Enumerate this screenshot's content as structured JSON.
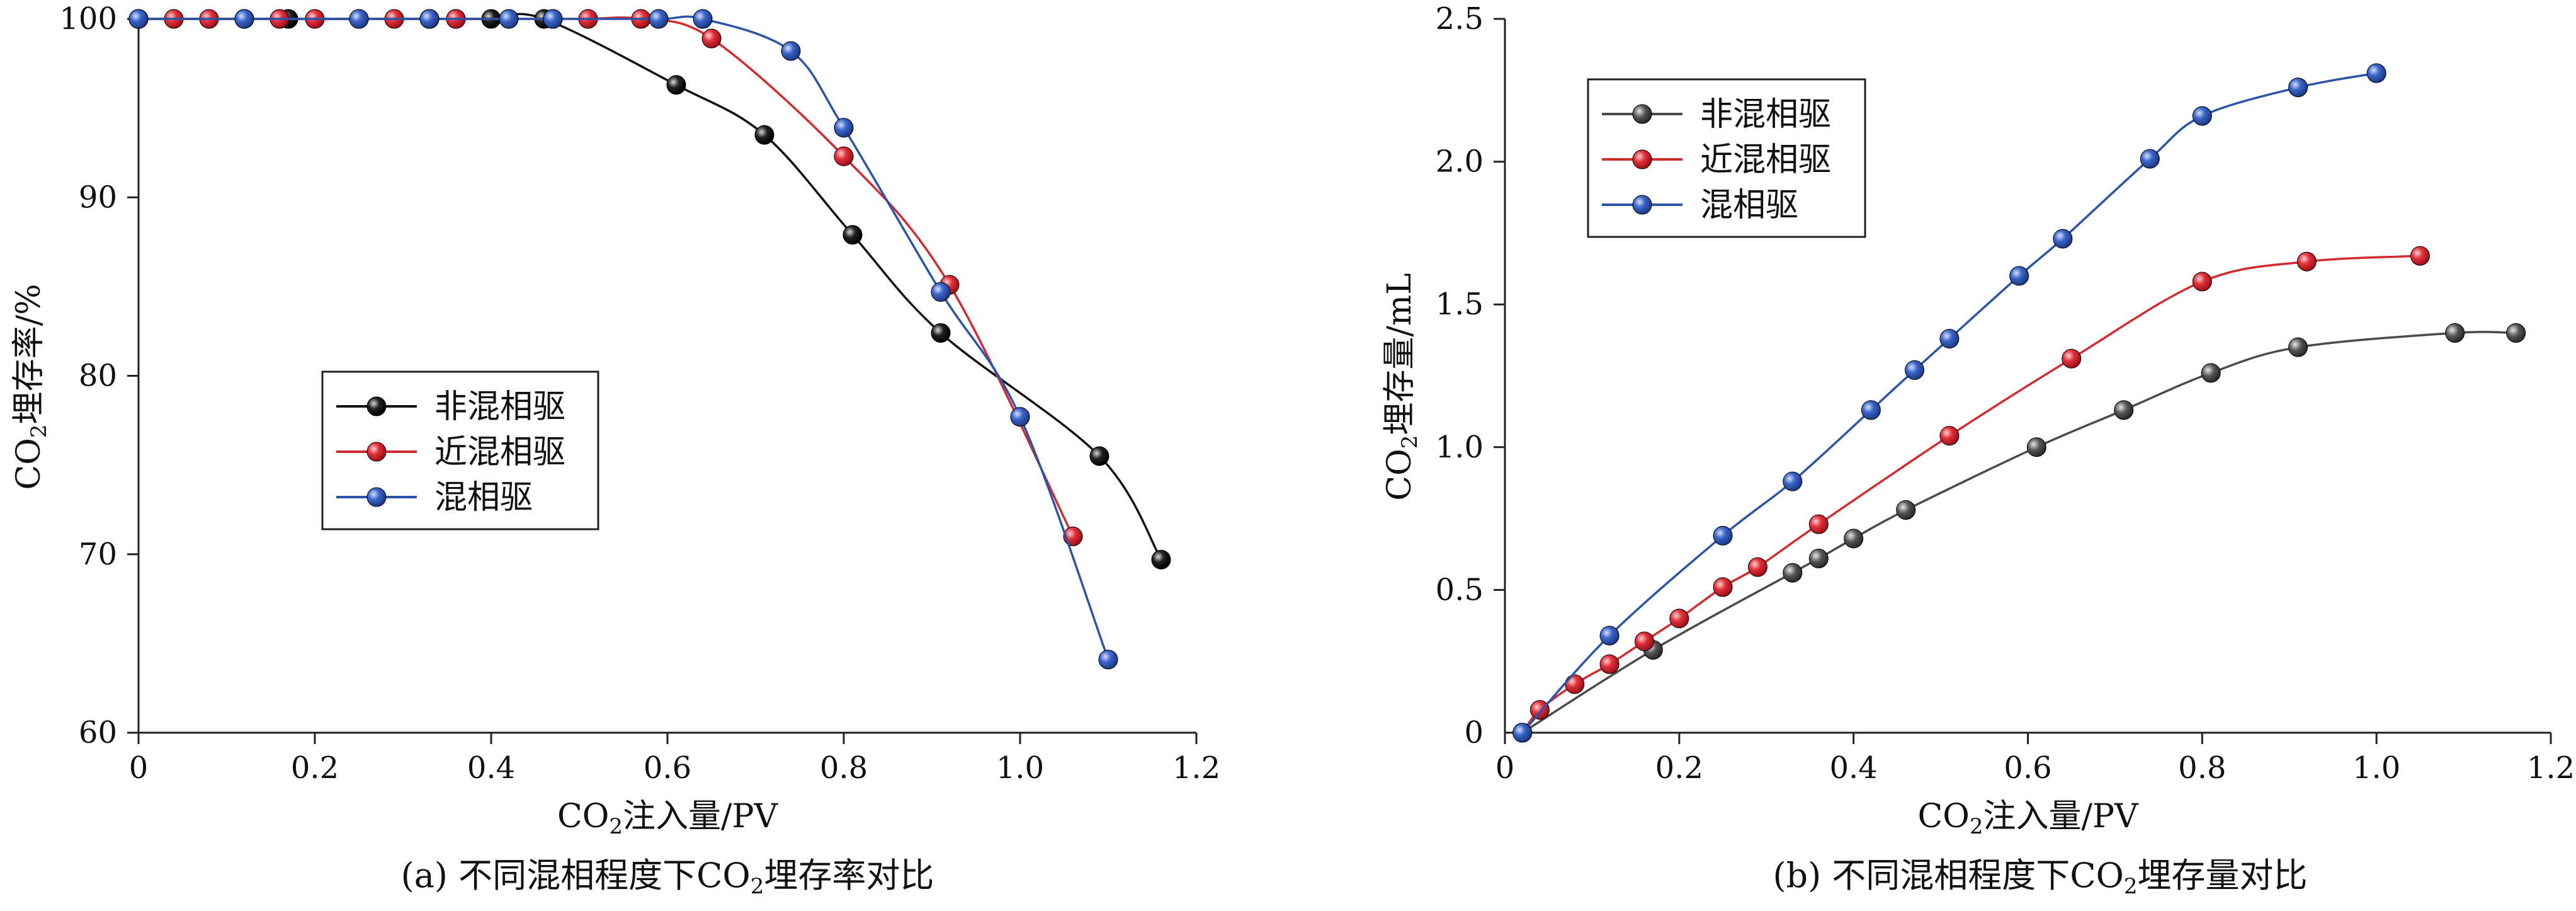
{
  "figure": {
    "colors": {
      "black": "#111111",
      "red": "#d32a2f",
      "blue": "#2a54a8",
      "gray": "#4a4a4a",
      "axis": "#222222"
    }
  },
  "chart_data": [
    {
      "id": "a",
      "type": "line",
      "caption": "(a) 不同混相程度下CO₂埋存率对比",
      "caption_parts": {
        "prefix": "(a) 不同混相程度下CO",
        "sub": "2",
        "suffix": "埋存率对比"
      },
      "xlabel": "CO₂注入量/PV",
      "xlabel_parts": {
        "prefix": "CO",
        "sub": "2",
        "suffix": "注入量/PV"
      },
      "ylabel": "CO₂埋存率/%",
      "ylabel_parts": {
        "prefix": "CO",
        "sub": "2",
        "suffix": "埋存率/%"
      },
      "xlim": [
        0,
        1.2
      ],
      "ylim": [
        60,
        100
      ],
      "xticks": [
        0,
        0.2,
        0.4,
        0.6,
        0.8,
        1.0,
        1.2
      ],
      "xtick_labels": [
        "0",
        "0.2",
        "0.4",
        "0.6",
        "0.8",
        "1.0",
        "1.2"
      ],
      "yticks": [
        60,
        70,
        80,
        90,
        100
      ],
      "ytick_labels": [
        "60",
        "70",
        "80",
        "90",
        "100"
      ],
      "legend_position": "center-left",
      "series": [
        {
          "name": "非混相驱",
          "color": "#111111",
          "x": [
            0.0,
            0.17,
            0.33,
            0.36,
            0.4,
            0.46,
            0.61,
            0.71,
            0.81,
            0.91,
            1.09,
            1.16
          ],
          "y": [
            100,
            100,
            100,
            100,
            100,
            100,
            96.3,
            93.5,
            87.9,
            82.4,
            75.5,
            69.7
          ]
        },
        {
          "name": "近混相驱",
          "color": "#d32a2f",
          "x": [
            0.0,
            0.04,
            0.08,
            0.12,
            0.16,
            0.2,
            0.25,
            0.29,
            0.33,
            0.36,
            0.47,
            0.51,
            0.57,
            0.65,
            0.8,
            0.92,
            1.06
          ],
          "y": [
            100,
            100,
            100,
            100,
            100,
            100,
            100,
            100,
            100,
            100,
            100,
            100,
            100,
            98.9,
            92.3,
            85.1,
            71.0
          ]
        },
        {
          "name": "混相驱",
          "color": "#2a54a8",
          "x": [
            0.0,
            0.12,
            0.25,
            0.33,
            0.42,
            0.47,
            0.59,
            0.64,
            0.74,
            0.8,
            0.91,
            1.0,
            1.1
          ],
          "y": [
            100,
            100,
            100,
            100,
            100,
            100,
            100,
            100,
            98.2,
            93.9,
            84.7,
            77.7,
            64.1
          ]
        }
      ]
    },
    {
      "id": "b",
      "type": "line",
      "caption": "(b) 不同混相程度下CO₂埋存量对比",
      "caption_parts": {
        "prefix": "(b) 不同混相程度下CO",
        "sub": "2",
        "suffix": "埋存量对比"
      },
      "xlabel": "CO₂注入量/PV",
      "xlabel_parts": {
        "prefix": "CO",
        "sub": "2",
        "suffix": "注入量/PV"
      },
      "ylabel": "CO₂埋存量/mL",
      "ylabel_parts": {
        "prefix": "CO",
        "sub": "2",
        "suffix": "埋存量/mL"
      },
      "xlim": [
        0,
        1.2
      ],
      "ylim": [
        0,
        2.5
      ],
      "xticks": [
        0,
        0.2,
        0.4,
        0.6,
        0.8,
        1.0,
        1.2
      ],
      "xtick_labels": [
        "0",
        "0.2",
        "0.4",
        "0.6",
        "0.8",
        "1.0",
        "1.2"
      ],
      "yticks": [
        0.5,
        1.0,
        1.5,
        2.0,
        2.5
      ],
      "ytick_labels": [
        "0.5",
        "1.0",
        "1.5",
        "2.0",
        "2.5"
      ],
      "legend_position": "top-left",
      "series": [
        {
          "name": "非混相驱",
          "color": "#4a4a4a",
          "x": [
            0.02,
            0.17,
            0.33,
            0.36,
            0.4,
            0.46,
            0.61,
            0.71,
            0.81,
            0.91,
            1.09,
            1.16
          ],
          "y": [
            0.0,
            0.29,
            0.56,
            0.61,
            0.68,
            0.78,
            1.0,
            1.13,
            1.26,
            1.35,
            1.4,
            1.4
          ]
        },
        {
          "name": "近混相驱",
          "color": "#d32a2f",
          "x": [
            0.02,
            0.04,
            0.08,
            0.12,
            0.16,
            0.2,
            0.25,
            0.29,
            0.36,
            0.51,
            0.65,
            0.8,
            0.92,
            1.05
          ],
          "y": [
            0.0,
            0.08,
            0.17,
            0.24,
            0.32,
            0.4,
            0.51,
            0.58,
            0.73,
            1.04,
            1.31,
            1.58,
            1.65,
            1.67
          ]
        },
        {
          "name": "混相驱",
          "color": "#2a54a8",
          "x": [
            0.02,
            0.12,
            0.25,
            0.33,
            0.42,
            0.47,
            0.51,
            0.59,
            0.64,
            0.74,
            0.8,
            0.91,
            1.0
          ],
          "y": [
            0.0,
            0.34,
            0.69,
            0.88,
            1.13,
            1.27,
            1.38,
            1.6,
            1.73,
            2.01,
            2.16,
            2.26,
            2.31
          ]
        }
      ]
    }
  ]
}
